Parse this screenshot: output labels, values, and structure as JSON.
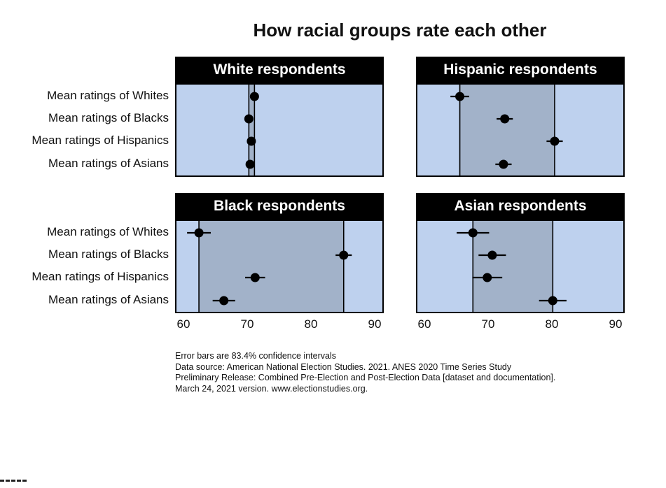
{
  "chart_data": {
    "type": "scatter",
    "title": "How racial groups rate each other",
    "row_labels": [
      "Mean ratings of Whites",
      "Mean ratings of Blacks",
      "Mean ratings of Hispanics",
      "Mean ratings of Asians"
    ],
    "xlim": [
      58.5,
      91.5
    ],
    "xticks": [
      60,
      70,
      80,
      90
    ],
    "colors": {
      "background": "#bed1ee",
      "range_band": "#a2b2c9",
      "point": "#000000",
      "header": "#000000"
    },
    "panels": [
      {
        "title": "White respondents",
        "points": [
          {
            "label": "Mean ratings of Whites",
            "value": 71.0,
            "low": 70.7,
            "high": 71.3
          },
          {
            "label": "Mean ratings of Blacks",
            "value": 70.1,
            "low": 69.8,
            "high": 70.4
          },
          {
            "label": "Mean ratings of Hispanics",
            "value": 70.5,
            "low": 70.2,
            "high": 70.8
          },
          {
            "label": "Mean ratings of Asians",
            "value": 70.3,
            "low": 70.0,
            "high": 70.6
          }
        ]
      },
      {
        "title": "Hispanic respondents",
        "points": [
          {
            "label": "Mean ratings of Whites",
            "value": 65.3,
            "low": 63.8,
            "high": 66.8
          },
          {
            "label": "Mean ratings of Blacks",
            "value": 72.5,
            "low": 71.2,
            "high": 73.8
          },
          {
            "label": "Mean ratings of Hispanics",
            "value": 80.5,
            "low": 79.2,
            "high": 81.8
          },
          {
            "label": "Mean ratings of Asians",
            "value": 72.3,
            "low": 71.0,
            "high": 73.6
          }
        ]
      },
      {
        "title": "Black respondents",
        "points": [
          {
            "label": "Mean ratings of Whites",
            "value": 62.1,
            "low": 60.2,
            "high": 64.0
          },
          {
            "label": "Mean ratings of Blacks",
            "value": 85.3,
            "low": 84.0,
            "high": 86.6
          },
          {
            "label": "Mean ratings of Hispanics",
            "value": 71.1,
            "low": 69.5,
            "high": 72.7
          },
          {
            "label": "Mean ratings of Asians",
            "value": 66.1,
            "low": 64.3,
            "high": 67.9
          }
        ]
      },
      {
        "title": "Asian respondents",
        "points": [
          {
            "label": "Mean ratings of Whites",
            "value": 67.4,
            "low": 64.8,
            "high": 70.0
          },
          {
            "label": "Mean ratings of Blacks",
            "value": 70.5,
            "low": 68.3,
            "high": 72.7
          },
          {
            "label": "Mean ratings of Hispanics",
            "value": 69.7,
            "low": 67.3,
            "high": 72.1
          },
          {
            "label": "Mean ratings of Asians",
            "value": 80.2,
            "low": 78.0,
            "high": 82.4
          }
        ]
      }
    ]
  },
  "notes": [
    "Error bars are 83.4% confidence intervals",
    "Data source: American National Election Studies. 2021. ANES 2020 Time Series Study",
    "Preliminary Release: Combined Pre-Election and Post-Election Data [dataset and documentation].",
    "March 24, 2021 version. www.electionstudies.org."
  ]
}
